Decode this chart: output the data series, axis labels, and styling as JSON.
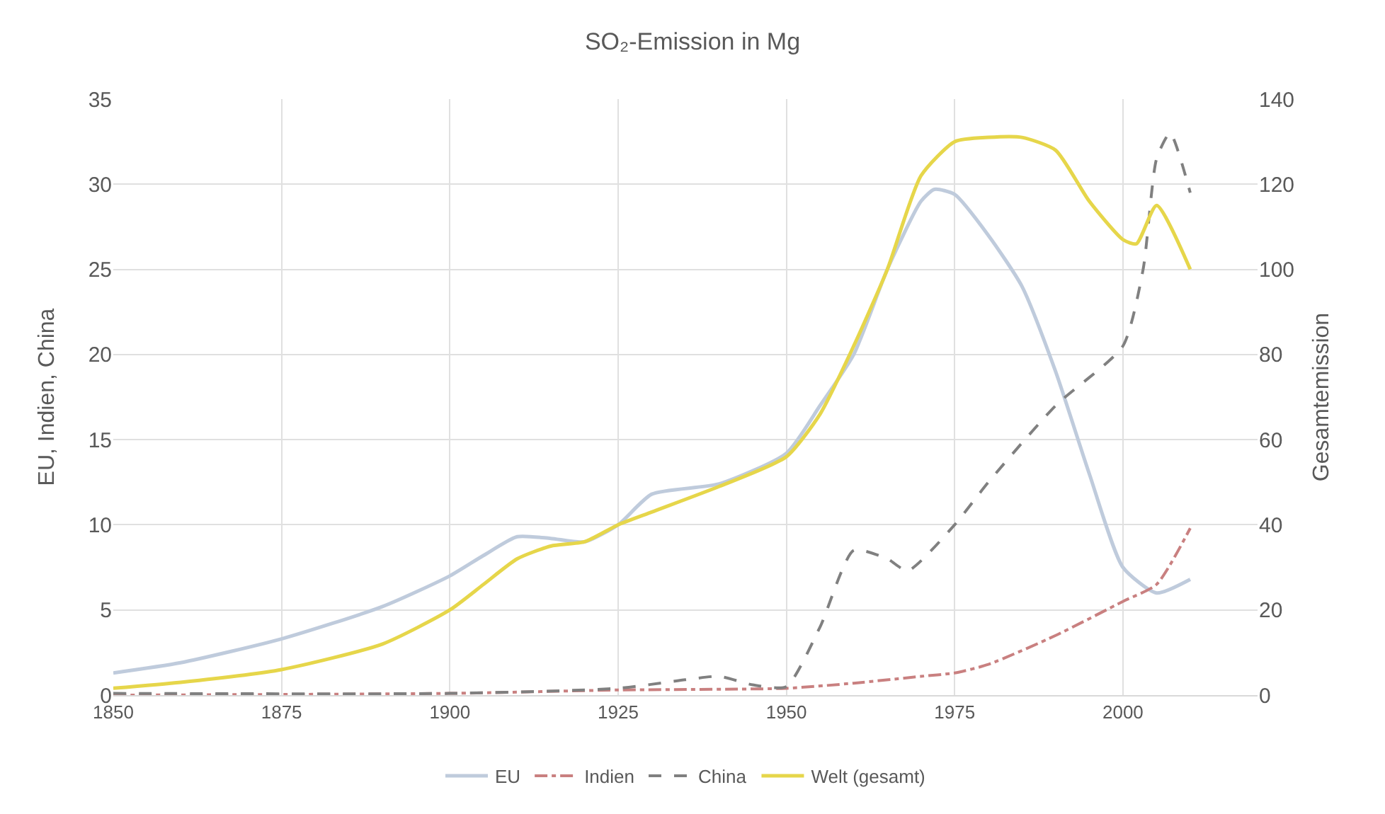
{
  "chart_data": {
    "type": "line",
    "title": "SO₂-Emission in Mg",
    "ylabel": "EU, Indien, China",
    "y2label": "Gesamtemission",
    "xlim": [
      1850,
      2020
    ],
    "xticks": [
      1850,
      1875,
      1900,
      1925,
      1950,
      1975,
      2000
    ],
    "ylim": [
      0,
      35
    ],
    "yticks": [
      0,
      5,
      10,
      15,
      20,
      25,
      30,
      35
    ],
    "y2lim": [
      0,
      140
    ],
    "y2ticks": [
      0,
      20,
      40,
      60,
      80,
      100,
      120,
      140
    ],
    "grid": true,
    "legend": "bottom",
    "marker": "none",
    "series": [
      {
        "name": "EU",
        "color": "#bfcbdc",
        "line_style": "solid",
        "x": [
          1850,
          1860,
          1875,
          1890,
          1900,
          1905,
          1910,
          1915,
          1920,
          1925,
          1930,
          1940,
          1950,
          1955,
          1960,
          1965,
          1970,
          1972,
          1975,
          1980,
          1985,
          1990,
          1995,
          2000,
          2005,
          2010
        ],
        "values": [
          1.3,
          1.9,
          3.3,
          5.2,
          7,
          8.2,
          9.3,
          9.2,
          9,
          10,
          11.8,
          12.4,
          14.2,
          17,
          20,
          25,
          29,
          29.7,
          29.4,
          27,
          24,
          19,
          13,
          7.5,
          6,
          6.8
        ]
      },
      {
        "name": "Indien",
        "color": "#c98080",
        "line_style": "dashdot",
        "x": [
          1850,
          1900,
          1925,
          1950,
          1960,
          1970,
          1975,
          1980,
          1990,
          2000,
          2005,
          2010
        ],
        "values": [
          0,
          0.1,
          0.3,
          0.4,
          0.7,
          1.1,
          1.3,
          1.8,
          3.5,
          5.5,
          6.5,
          9.8
        ]
      },
      {
        "name": "China",
        "color": "#808080",
        "line_style": "dashed",
        "x": [
          1850,
          1900,
          1925,
          1935,
          1940,
          1945,
          1950,
          1955,
          1960,
          1965,
          1968,
          1975,
          1980,
          1990,
          2000,
          2003,
          2005,
          2007,
          2010
        ],
        "values": [
          0.1,
          0.1,
          0.4,
          0.9,
          1.1,
          0.6,
          0.5,
          4,
          8.5,
          8,
          7.3,
          10,
          12.5,
          17,
          20.5,
          25,
          31.5,
          33,
          29.5
        ]
      },
      {
        "name": "Welt (gesamt)",
        "color": "#e6d64a",
        "line_style": "solid",
        "axis": "y2",
        "x": [
          1850,
          1860,
          1875,
          1890,
          1900,
          1905,
          1910,
          1915,
          1920,
          1925,
          1930,
          1940,
          1950,
          1955,
          1960,
          1965,
          1970,
          1975,
          1980,
          1985,
          1990,
          1995,
          2000,
          2002,
          2005,
          2010
        ],
        "values": [
          1.6,
          3,
          6,
          12,
          20,
          26,
          32,
          35,
          36,
          40,
          43,
          49,
          56,
          66,
          82,
          100,
          122,
          130,
          131,
          131,
          128,
          116,
          107,
          106,
          115,
          100
        ]
      }
    ]
  }
}
